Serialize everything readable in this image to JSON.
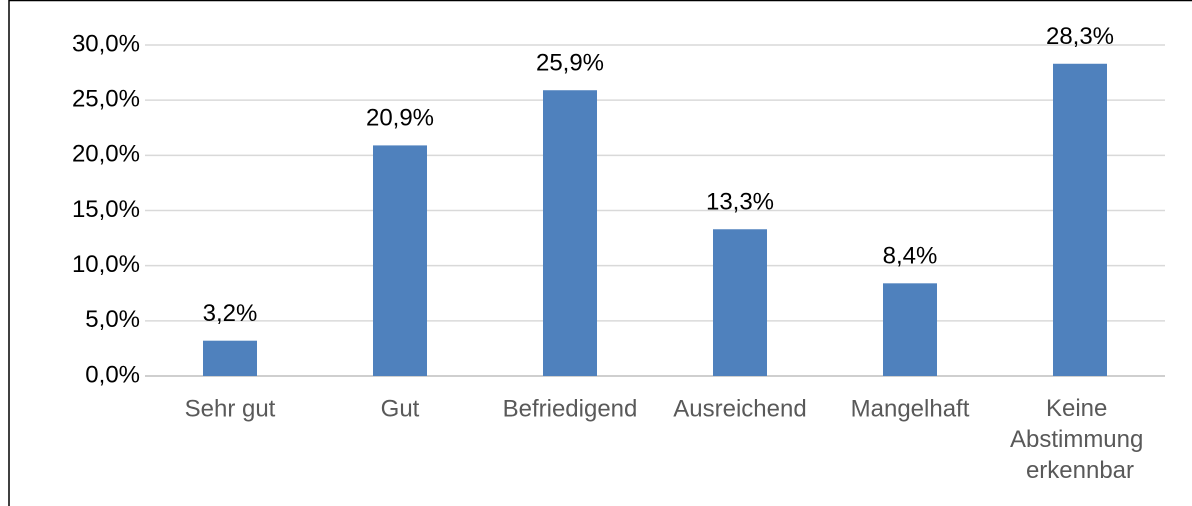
{
  "chart_data": {
    "type": "bar",
    "categories": [
      "Sehr gut",
      "Gut",
      "Befriedigend",
      "Ausreichend",
      "Mangelhaft",
      "Keine Abstimmung erkennbar"
    ],
    "values": [
      3.2,
      20.9,
      25.9,
      13.3,
      8.4,
      28.3
    ],
    "value_labels": [
      "3,2%",
      "20,9%",
      "25,9%",
      "13,3%",
      "8,4%",
      "28,3%"
    ],
    "color": "#4f81bd",
    "ylim": [
      0,
      30
    ],
    "yticks": [
      {
        "value": 0,
        "label": "0,0%"
      },
      {
        "value": 5,
        "label": "5,0%"
      },
      {
        "value": 10,
        "label": "10,0%"
      },
      {
        "value": 15,
        "label": "15,0%"
      },
      {
        "value": 20,
        "label": "20,0%"
      },
      {
        "value": 25,
        "label": "25,0%"
      },
      {
        "value": 30,
        "label": "30,0%"
      }
    ],
    "grid": true
  }
}
